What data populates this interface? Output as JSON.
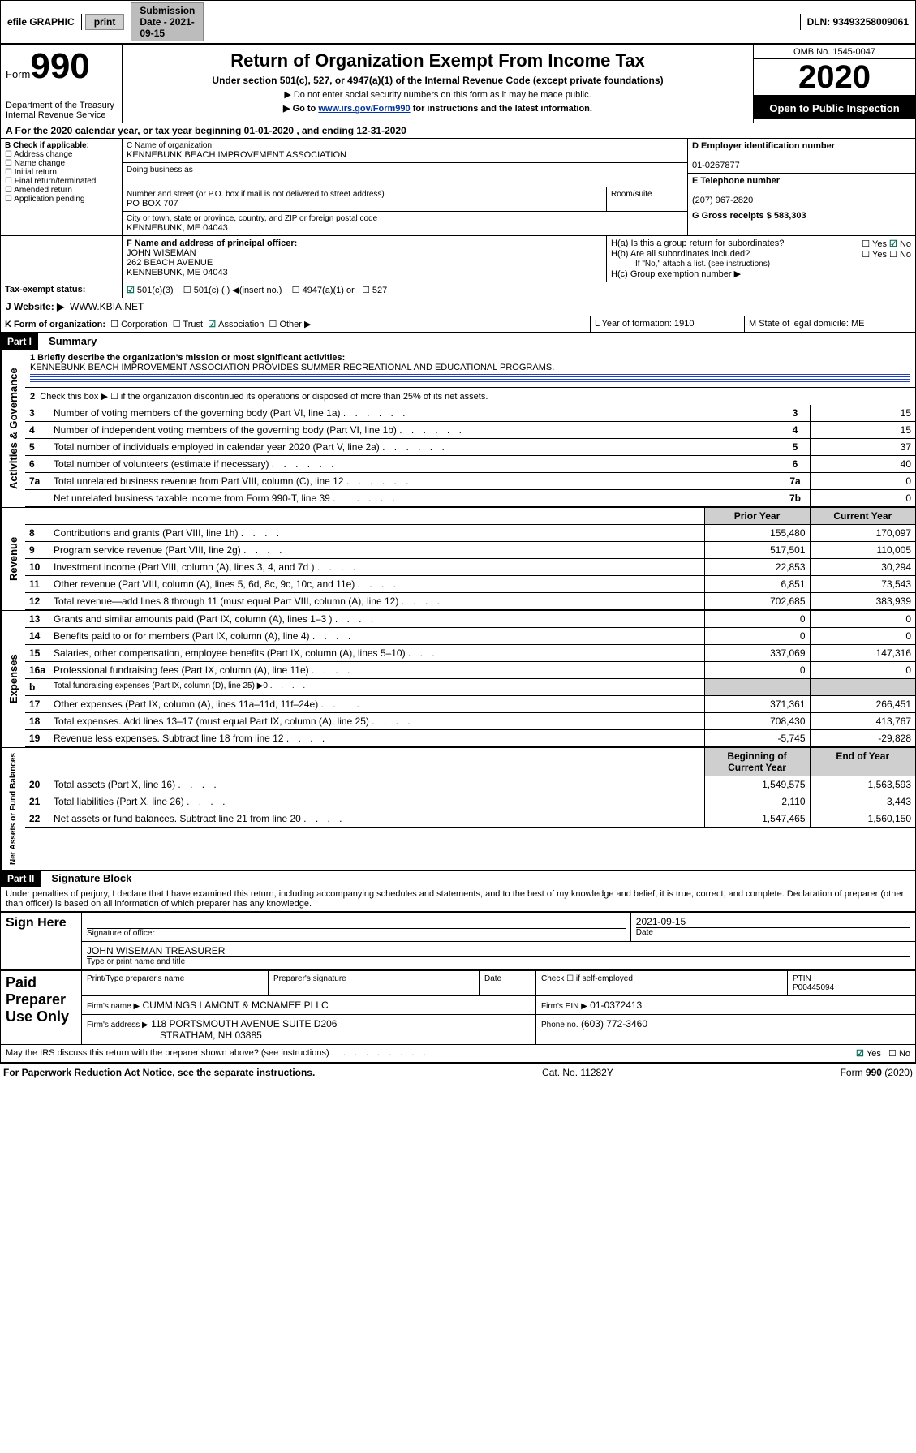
{
  "topbar": {
    "efile": "efile GRAPHIC",
    "print": "print",
    "submission_label": "Submission Date - 2021-09-15",
    "dln_label": "DLN: 93493258009061"
  },
  "header": {
    "form_word": "Form",
    "form_num": "990",
    "title": "Return of Organization Exempt From Income Tax",
    "subtitle": "Under section 501(c), 527, or 4947(a)(1) of the Internal Revenue Code (except private foundations)",
    "note1": "▶ Do not enter social security numbers on this form as it may be made public.",
    "note2_pre": "▶ Go to ",
    "note2_link": "www.irs.gov/Form990",
    "note2_post": " for instructions and the latest information.",
    "dept": "Department of the Treasury\nInternal Revenue Service",
    "omb": "OMB No. 1545-0047",
    "year": "2020",
    "open": "Open to Public Inspection"
  },
  "period": {
    "line": "A For the 2020 calendar year, or tax year beginning 01-01-2020    , and ending 12-31-2020"
  },
  "boxB": {
    "label": "B Check if applicable:",
    "opts": [
      "Address change",
      "Name change",
      "Initial return",
      "Final return/terminated",
      "Amended return",
      "Application pending"
    ]
  },
  "boxC": {
    "name_label": "C Name of organization",
    "name": "KENNEBUNK BEACH IMPROVEMENT ASSOCIATION",
    "dba_label": "Doing business as",
    "addr_label": "Number and street (or P.O. box if mail is not delivered to street address)",
    "room_label": "Room/suite",
    "addr": "PO BOX 707",
    "city_label": "City or town, state or province, country, and ZIP or foreign postal code",
    "city": "KENNEBUNK, ME  04043"
  },
  "boxD": {
    "label": "D Employer identification number",
    "val": "01-0267877"
  },
  "boxE": {
    "label": "E Telephone number",
    "val": "(207) 967-2820"
  },
  "boxG": {
    "label": "G Gross receipts $ 583,303"
  },
  "boxF": {
    "label": "F  Name and address of principal officer:",
    "name": "JOHN WISEMAN",
    "addr1": "262 BEACH AVENUE",
    "addr2": "KENNEBUNK, ME  04043"
  },
  "boxH": {
    "a": "H(a)  Is this a group return for subordinates?",
    "b": "H(b)  Are all subordinates included?",
    "bnote": "If \"No,\" attach a list. (see instructions)",
    "c": "H(c)  Group exemption number ▶"
  },
  "boxI": {
    "label": "Tax-exempt status:",
    "o1": "501(c)(3)",
    "o2": "501(c) (  ) ◀(insert no.)",
    "o3": "4947(a)(1) or",
    "o4": "527"
  },
  "boxJ": {
    "label": "J   Website: ▶",
    "val": "WWW.KBIA.NET"
  },
  "boxK": {
    "label": "K Form of organization:",
    "o1": "Corporation",
    "o2": "Trust",
    "o3": "Association",
    "o4": "Other ▶"
  },
  "boxL": {
    "label": "L Year of formation: 1910"
  },
  "boxM": {
    "label": "M State of legal domicile: ME"
  },
  "part1": {
    "hdr": "Part I",
    "title": "Summary",
    "l1_label": "1  Briefly describe the organization's mission or most significant activities:",
    "l1_val": "KENNEBUNK BEACH IMPROVEMENT ASSOCIATION PROVIDES SUMMER RECREATIONAL AND EDUCATIONAL PROGRAMS.",
    "l2": "Check this box ▶ ☐  if the organization discontinued its operations or disposed of more than 25% of its net assets.",
    "rows_a": [
      {
        "n": "3",
        "t": "Number of voting members of the governing body (Part VI, line 1a)",
        "b": "3",
        "v": "15"
      },
      {
        "n": "4",
        "t": "Number of independent voting members of the governing body (Part VI, line 1b)",
        "b": "4",
        "v": "15"
      },
      {
        "n": "5",
        "t": "Total number of individuals employed in calendar year 2020 (Part V, line 2a)",
        "b": "5",
        "v": "37"
      },
      {
        "n": "6",
        "t": "Total number of volunteers (estimate if necessary)",
        "b": "6",
        "v": "40"
      },
      {
        "n": "7a",
        "t": "Total unrelated business revenue from Part VIII, column (C), line 12",
        "b": "7a",
        "v": "0"
      },
      {
        "n": "",
        "t": "Net unrelated business taxable income from Form 990-T, line 39",
        "b": "7b",
        "v": "0"
      }
    ],
    "col_hdr1": "Prior Year",
    "col_hdr2": "Current Year",
    "revenue": [
      {
        "n": "8",
        "t": "Contributions and grants (Part VIII, line 1h)",
        "p": "155,480",
        "c": "170,097"
      },
      {
        "n": "9",
        "t": "Program service revenue (Part VIII, line 2g)",
        "p": "517,501",
        "c": "110,005"
      },
      {
        "n": "10",
        "t": "Investment income (Part VIII, column (A), lines 3, 4, and 7d )",
        "p": "22,853",
        "c": "30,294"
      },
      {
        "n": "11",
        "t": "Other revenue (Part VIII, column (A), lines 5, 6d, 8c, 9c, 10c, and 11e)",
        "p": "6,851",
        "c": "73,543"
      },
      {
        "n": "12",
        "t": "Total revenue—add lines 8 through 11 (must equal Part VIII, column (A), line 12)",
        "p": "702,685",
        "c": "383,939"
      }
    ],
    "expenses": [
      {
        "n": "13",
        "t": "Grants and similar amounts paid (Part IX, column (A), lines 1–3 )",
        "p": "0",
        "c": "0"
      },
      {
        "n": "14",
        "t": "Benefits paid to or for members (Part IX, column (A), line 4)",
        "p": "0",
        "c": "0"
      },
      {
        "n": "15",
        "t": "Salaries, other compensation, employee benefits (Part IX, column (A), lines 5–10)",
        "p": "337,069",
        "c": "147,316"
      },
      {
        "n": "16a",
        "t": "Professional fundraising fees (Part IX, column (A), line 11e)",
        "p": "0",
        "c": "0"
      },
      {
        "n": "b",
        "t": "Total fundraising expenses (Part IX, column (D), line 25) ▶0",
        "p": "",
        "c": "",
        "shade": true,
        "small": true
      },
      {
        "n": "17",
        "t": "Other expenses (Part IX, column (A), lines 11a–11d, 11f–24e)",
        "p": "371,361",
        "c": "266,451"
      },
      {
        "n": "18",
        "t": "Total expenses. Add lines 13–17 (must equal Part IX, column (A), line 25)",
        "p": "708,430",
        "c": "413,767"
      },
      {
        "n": "19",
        "t": "Revenue less expenses. Subtract line 18 from line 12",
        "p": "-5,745",
        "c": "-29,828"
      }
    ],
    "col_hdr3": "Beginning of Current Year",
    "col_hdr4": "End of Year",
    "netassets": [
      {
        "n": "20",
        "t": "Total assets (Part X, line 16)",
        "p": "1,549,575",
        "c": "1,563,593"
      },
      {
        "n": "21",
        "t": "Total liabilities (Part X, line 26)",
        "p": "2,110",
        "c": "3,443"
      },
      {
        "n": "22",
        "t": "Net assets or fund balances. Subtract line 21 from line 20",
        "p": "1,547,465",
        "c": "1,560,150"
      }
    ],
    "vlabels": {
      "a": "Activities & Governance",
      "r": "Revenue",
      "e": "Expenses",
      "n": "Net Assets or Fund Balances"
    }
  },
  "part2": {
    "hdr": "Part II",
    "title": "Signature Block",
    "perjury": "Under penalties of perjury, I declare that I have examined this return, including accompanying schedules and statements, and to the best of my knowledge and belief, it is true, correct, and complete. Declaration of preparer (other than officer) is based on all information of which preparer has any knowledge.",
    "sign_here": "Sign Here",
    "sig_officer": "Signature of officer",
    "date": "2021-09-15",
    "date_label": "Date",
    "officer": "JOHN WISEMAN  TREASURER",
    "officer_label": "Type or print name and title",
    "paid": "Paid Preparer Use Only",
    "pt_name_label": "Print/Type preparer's name",
    "pt_sig_label": "Preparer's signature",
    "pt_date_label": "Date",
    "pt_self": "Check ☐  if self-employed",
    "ptin_label": "PTIN",
    "ptin": "P00445094",
    "firm_name_label": "Firm's name    ▶",
    "firm_name": "CUMMINGS LAMONT & MCNAMEE PLLC",
    "firm_ein_label": "Firm's EIN ▶",
    "firm_ein": "01-0372413",
    "firm_addr_label": "Firm's address ▶",
    "firm_addr": "118 PORTSMOUTH AVENUE SUITE D206",
    "firm_addr2": "STRATHAM, NH  03885",
    "phone_label": "Phone no.",
    "phone": "(603) 772-3460",
    "discuss": "May the IRS discuss this return with the preparer shown above? (see instructions)"
  },
  "footer": {
    "left": "For Paperwork Reduction Act Notice, see the separate instructions.",
    "mid": "Cat. No. 11282Y",
    "right": "Form 990 (2020)"
  }
}
